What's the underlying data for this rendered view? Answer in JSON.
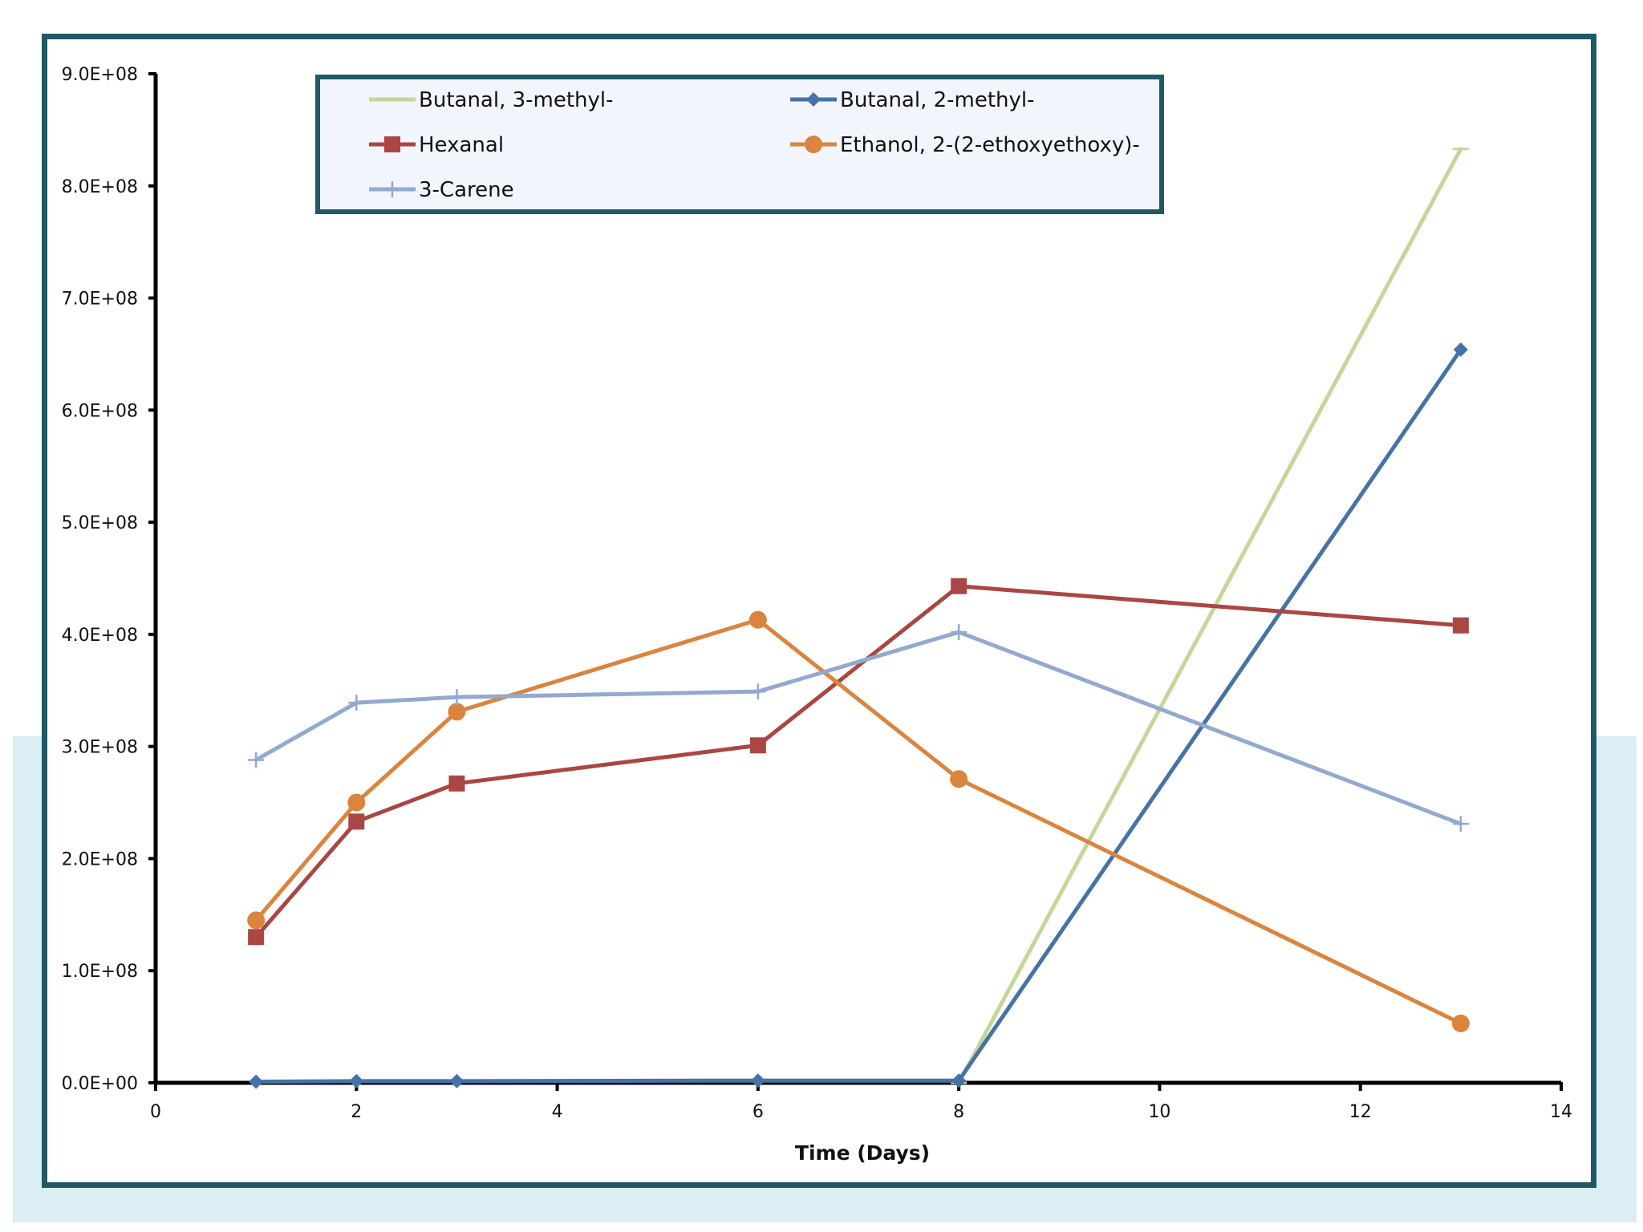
{
  "chart_data": {
    "type": "line",
    "title": "",
    "xlabel": "Time (Days)",
    "ylabel": "",
    "xlim": [
      0,
      14
    ],
    "ylim": [
      0,
      900000000
    ],
    "x_ticks": [
      0,
      2,
      4,
      6,
      8,
      10,
      12,
      14
    ],
    "x_tick_labels": [
      "0",
      "2",
      "4",
      "6",
      "8",
      "10",
      "12",
      "14"
    ],
    "y_ticks": [
      0,
      100000000,
      200000000,
      300000000,
      400000000,
      500000000,
      600000000,
      700000000,
      800000000,
      900000000
    ],
    "y_tick_labels": [
      "0.0E+00",
      "1.0E+08",
      "2.0E+08",
      "3.0E+08",
      "4.0E+08",
      "5.0E+08",
      "6.0E+08",
      "7.0E+08",
      "8.0E+08",
      "9.0E+08"
    ],
    "legend_position": "top",
    "series": [
      {
        "name": "Butanal, 3-methyl-",
        "color": "#c4d79b",
        "marker": "dash",
        "x": [
          8,
          13
        ],
        "values": [
          0,
          833000000
        ]
      },
      {
        "name": "Butanal, 2-methyl-",
        "color": "#4572a7",
        "marker": "diamond",
        "x": [
          1,
          2,
          3,
          6,
          8,
          13
        ],
        "values": [
          1000000,
          1500000,
          1500000,
          2000000,
          2000000,
          654000000
        ]
      },
      {
        "name": "Hexanal",
        "color": "#aa4643",
        "marker": "square",
        "x": [
          1,
          2,
          3,
          6,
          8,
          13
        ],
        "values": [
          130000000,
          233000000,
          267000000,
          301000000,
          443000000,
          408000000
        ]
      },
      {
        "name": "Ethanol, 2-(2-ethoxyethoxy)-",
        "color": "#db843d",
        "marker": "circle",
        "x": [
          1,
          2,
          3,
          6,
          8,
          13
        ],
        "values": [
          145000000,
          250000000,
          331000000,
          413000000,
          271000000,
          53000000
        ]
      },
      {
        "name": "3-Carene",
        "color": "#93a9cf",
        "marker": "plus",
        "x": [
          1,
          2,
          3,
          6,
          8,
          13
        ],
        "values": [
          288000000,
          339000000,
          344000000,
          349000000,
          402000000,
          231000000
        ]
      }
    ]
  },
  "colors": {
    "frame": "#215866",
    "band": "#daeef3",
    "legend_bg": "#f2f5fb",
    "axis": "#000000"
  }
}
